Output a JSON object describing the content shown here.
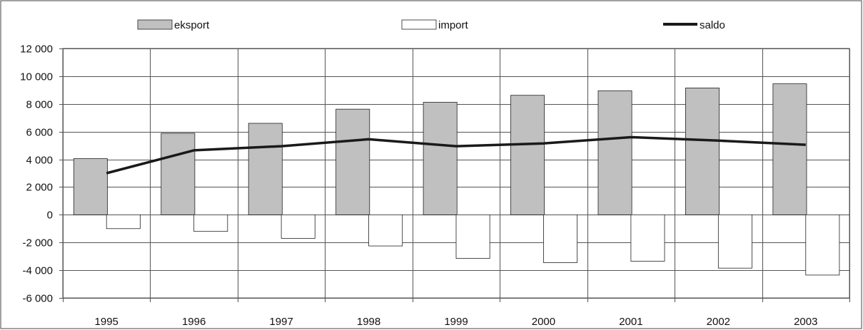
{
  "chart_data": {
    "type": "bar",
    "title": "",
    "xlabel": "",
    "ylabel": "",
    "categories": [
      "1995",
      "1996",
      "1997",
      "1998",
      "1999",
      "2000",
      "2001",
      "2002",
      "2003"
    ],
    "ylim": [
      -6000,
      12000
    ],
    "ytick_step": 2000,
    "ytick_labels": [
      "12 000",
      "10 000",
      "8 000",
      "6 000",
      "4 000",
      "2 000",
      "0",
      "-2 000",
      "-4 000",
      "-6 000"
    ],
    "grid": true,
    "legend_position": "top",
    "series": [
      {
        "name": "eksport",
        "type": "bar",
        "color": "#c0c0c0",
        "values": [
          4050,
          5880,
          6600,
          7620,
          8120,
          8620,
          8950,
          9150,
          9450
        ]
      },
      {
        "name": "import",
        "type": "bar",
        "color": "#ffffff",
        "values": [
          -1000,
          -1200,
          -1700,
          -2250,
          -3150,
          -3450,
          -3350,
          -3850,
          -4350
        ]
      },
      {
        "name": "saldo",
        "type": "line",
        "color": "#1a1a1a",
        "values": [
          3000,
          4650,
          4950,
          5450,
          4950,
          5150,
          5600,
          5350,
          5050
        ]
      }
    ]
  }
}
